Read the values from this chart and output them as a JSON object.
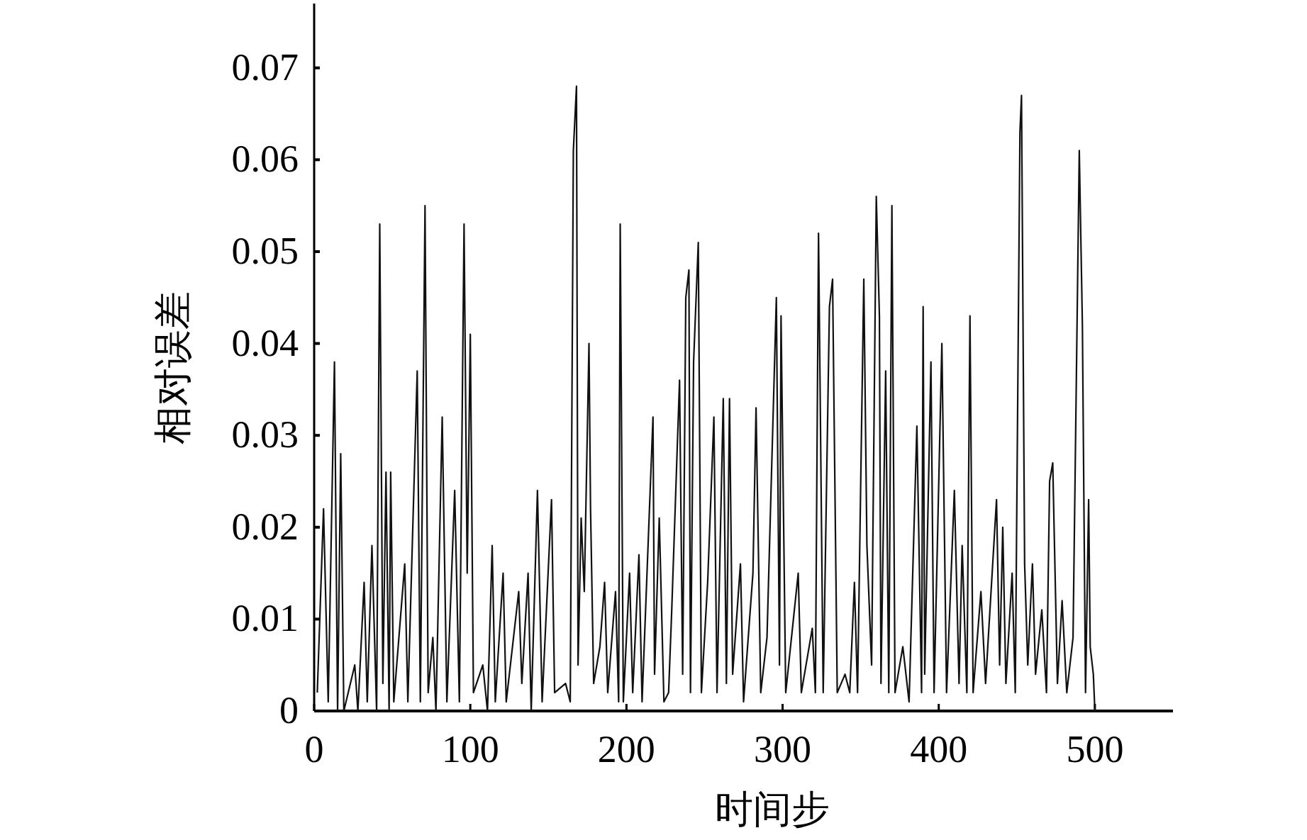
{
  "chart_data": {
    "type": "line",
    "xlabel": "时间步",
    "ylabel": "相对误差",
    "x": [
      2,
      6,
      9,
      13,
      15,
      17,
      19,
      26,
      28,
      32,
      34,
      37,
      40,
      42,
      44,
      46,
      48,
      49,
      51,
      58,
      60,
      66,
      68,
      71,
      73,
      76,
      78,
      82,
      85,
      90,
      93,
      96,
      98,
      100,
      102,
      108,
      111,
      114,
      116,
      121,
      123,
      131,
      133,
      137,
      139,
      143,
      146,
      152,
      154,
      161,
      164,
      166,
      168,
      169,
      171,
      173,
      176,
      177,
      179,
      183,
      186,
      188,
      193,
      195,
      196,
      198,
      202,
      204,
      208,
      210,
      217,
      218,
      221,
      224,
      227,
      229,
      232,
      234,
      236,
      238,
      240,
      241,
      243,
      246,
      248,
      252,
      256,
      258,
      262,
      264,
      266,
      268,
      273,
      275,
      281,
      283,
      286,
      290,
      296,
      298,
      299,
      302,
      310,
      312,
      319,
      321,
      323,
      326,
      330,
      332,
      335,
      340,
      343,
      346,
      348,
      352,
      354,
      357,
      360,
      362,
      363,
      366,
      368,
      370,
      372,
      377,
      381,
      386,
      389,
      390,
      391,
      395,
      397,
      402,
      405,
      410,
      413,
      415,
      418,
      420,
      422,
      427,
      430,
      437,
      439,
      441,
      443,
      447,
      449,
      452,
      453,
      455,
      457,
      460,
      462,
      466,
      469,
      471,
      473,
      476,
      479,
      482,
      486,
      490,
      492,
      494,
      496,
      497,
      499,
      500
    ],
    "values": [
      0.002,
      0.022,
      0.001,
      0.038,
      0.0,
      0.028,
      0.0,
      0.005,
      0.0,
      0.014,
      0.001,
      0.018,
      0.0,
      0.053,
      0.003,
      0.026,
      0.0,
      0.026,
      0.001,
      0.016,
      0.001,
      0.037,
      0.001,
      0.055,
      0.002,
      0.008,
      0.0,
      0.032,
      0.001,
      0.024,
      0.001,
      0.053,
      0.015,
      0.041,
      0.002,
      0.005,
      0.0,
      0.018,
      0.001,
      0.015,
      0.001,
      0.013,
      0.003,
      0.015,
      0.0,
      0.024,
      0.001,
      0.023,
      0.002,
      0.003,
      0.001,
      0.061,
      0.068,
      0.005,
      0.021,
      0.013,
      0.04,
      0.022,
      0.003,
      0.007,
      0.014,
      0.002,
      0.013,
      0.001,
      0.053,
      0.001,
      0.015,
      0.002,
      0.017,
      0.001,
      0.032,
      0.004,
      0.021,
      0.001,
      0.002,
      0.011,
      0.026,
      0.036,
      0.004,
      0.045,
      0.048,
      0.002,
      0.038,
      0.051,
      0.002,
      0.014,
      0.032,
      0.002,
      0.034,
      0.003,
      0.034,
      0.004,
      0.016,
      0.001,
      0.015,
      0.033,
      0.002,
      0.008,
      0.045,
      0.005,
      0.043,
      0.002,
      0.015,
      0.002,
      0.009,
      0.002,
      0.052,
      0.002,
      0.044,
      0.047,
      0.002,
      0.004,
      0.002,
      0.014,
      0.002,
      0.047,
      0.018,
      0.005,
      0.056,
      0.043,
      0.003,
      0.037,
      0.002,
      0.055,
      0.002,
      0.007,
      0.001,
      0.031,
      0.002,
      0.044,
      0.004,
      0.038,
      0.002,
      0.04,
      0.002,
      0.024,
      0.003,
      0.018,
      0.002,
      0.043,
      0.002,
      0.013,
      0.003,
      0.023,
      0.005,
      0.02,
      0.003,
      0.015,
      0.002,
      0.063,
      0.067,
      0.016,
      0.005,
      0.016,
      0.004,
      0.011,
      0.002,
      0.025,
      0.027,
      0.003,
      0.012,
      0.002,
      0.008,
      0.061,
      0.042,
      0.002,
      0.023,
      0.007,
      0.004,
      0.0
    ],
    "color": "#111111",
    "xlim": [
      0,
      550
    ],
    "ylim": [
      0,
      0.077
    ],
    "xticks": [
      0,
      100,
      200,
      300,
      400,
      500
    ],
    "yticks": [
      0,
      0.01,
      0.02,
      0.03,
      0.04,
      0.05,
      0.06,
      0.07
    ]
  }
}
